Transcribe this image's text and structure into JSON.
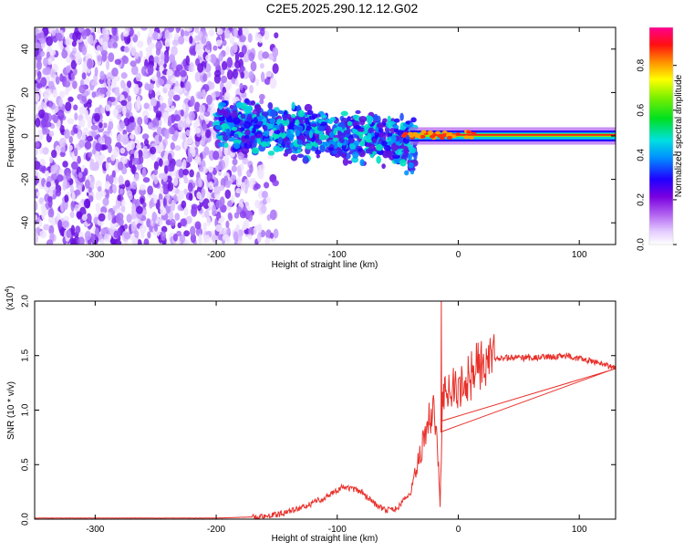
{
  "title": "C2E5.2025.290.12.12.G02",
  "chart_data": [
    {
      "type": "heatmap",
      "xlabel": "Height of straight line (km)",
      "ylabel": "Frequency (Hz)",
      "xlim": [
        -350,
        130
      ],
      "ylim": [
        -50,
        50
      ],
      "x_ticks": [
        -300,
        -200,
        -100,
        0,
        100
      ],
      "y_ticks": [
        -40,
        -20,
        0,
        20,
        40
      ],
      "colorbar": {
        "label": "Normalized spectral amplitude",
        "ticks": [
          0.0,
          0.2,
          0.4,
          0.6,
          0.8
        ],
        "range": [
          0,
          0.97
        ]
      },
      "regions": [
        {
          "x_range": [
            -350,
            -170
          ],
          "freq_range": [
            -50,
            50
          ],
          "amplitude": "scattered low (0.0-0.15)"
        },
        {
          "x_range": [
            -200,
            -40
          ],
          "freq_center_start": 6,
          "freq_center_end": -4,
          "amplitude": "0.2-0.5"
        },
        {
          "x_range": [
            -40,
            130
          ],
          "freq_center": 0.5,
          "amplitude": "0.8-0.97"
        }
      ]
    },
    {
      "type": "line",
      "xlabel": "Height of straight line (km)",
      "ylabel": "SNR (10 * v/v)",
      "y_scale_label": "(x10",
      "y_scale_exp": "4",
      "y_scale_close": ")",
      "xlim": [
        -350,
        130
      ],
      "ylim": [
        0.0,
        2.0
      ],
      "x_ticks": [
        -300,
        -200,
        -100,
        0,
        100
      ],
      "y_ticks": [
        "0.0",
        "0.5",
        "1.0",
        "1.5",
        "2.0"
      ],
      "series": [
        {
          "color": "#e8302a",
          "x": [
            -350,
            -300,
            -250,
            -200,
            -170,
            -150,
            -130,
            -110,
            -95,
            -80,
            -70,
            -60,
            -50,
            -40,
            -35,
            -30,
            -25,
            -20,
            -18,
            -15,
            -13,
            -10,
            -5,
            0,
            5,
            10,
            15,
            20,
            30,
            40,
            60,
            80,
            90,
            100,
            110,
            120,
            130
          ],
          "y": [
            0.01,
            0.01,
            0.01,
            0.01,
            0.02,
            0.04,
            0.1,
            0.2,
            0.3,
            0.25,
            0.15,
            0.08,
            0.1,
            0.25,
            0.45,
            0.65,
            0.9,
            1.0,
            0.85,
            0.15,
            1.05,
            1.15,
            1.2,
            1.15,
            1.25,
            1.3,
            1.4,
            1.43,
            1.47,
            1.48,
            1.48,
            1.49,
            1.5,
            1.47,
            1.45,
            1.42,
            1.38
          ]
        }
      ],
      "spike": {
        "x": -14,
        "y": 2.0
      }
    }
  ]
}
